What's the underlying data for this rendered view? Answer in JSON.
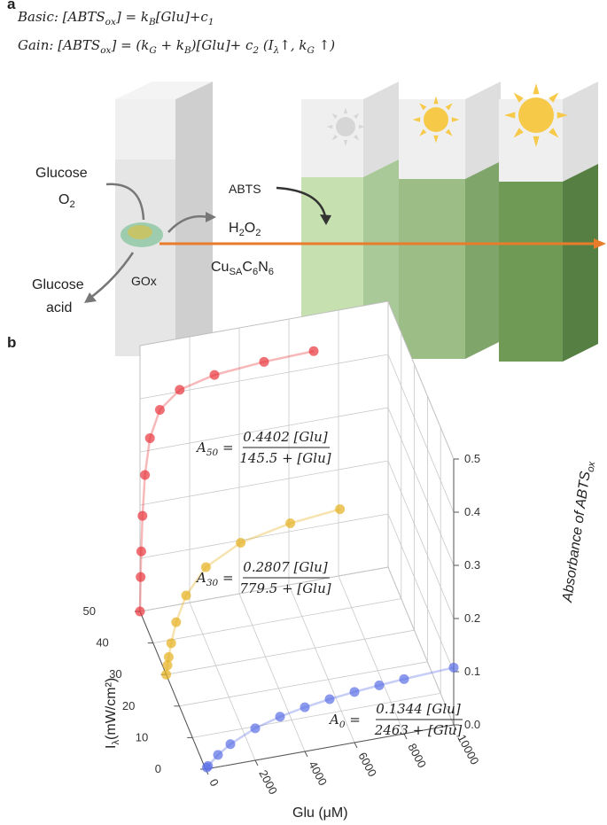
{
  "panel_a": {
    "label": "a",
    "equations": [
      [
        "Basic: [ABTS",
        "ox",
        "] = k",
        "B",
        "[Glu]+c",
        "1"
      ],
      [
        "Gain: [ABTS",
        "ox",
        "] = (k",
        "G",
        " + k",
        "B",
        ")[Glu]+ c",
        "2",
        "     (I",
        "λ",
        "↑, k",
        "G",
        " ↑)"
      ]
    ],
    "glucose_in": "Glucose",
    "o2": [
      "O",
      "2"
    ],
    "acid_1": "Glucose",
    "acid_2": "acid",
    "enzyme": "GOx",
    "abts": "ABTS",
    "h2o2": [
      "H",
      "2",
      "O",
      "2"
    ],
    "catalyst": [
      "Cu",
      "SA",
      "C",
      "6",
      "N",
      "6"
    ]
  },
  "chart_data": {
    "type": "scatter3d",
    "label": "b",
    "xlabel": "Glu (μM)",
    "ylabel": [
      "I",
      "λ",
      "(mW/cm²)"
    ],
    "zlabel": [
      "Absorbance of ABTS",
      "ox"
    ],
    "xlim": [
      0,
      10000
    ],
    "ylim": [
      0,
      50
    ],
    "zlim": [
      0,
      0.5
    ],
    "xticks": [
      0,
      2000,
      4000,
      6000,
      8000,
      10000
    ],
    "yticks": [
      0,
      10,
      20,
      30,
      40,
      50
    ],
    "zticks": [
      {
        "value": 0,
        "label": "0.0"
      },
      0.1,
      0.2,
      0.3,
      0.4,
      0.5
    ],
    "grid": true,
    "series": [
      {
        "depth": 50,
        "color": "#e8353a",
        "x": [
          0,
          25,
          50,
          100,
          200,
          400,
          800,
          1600,
          3000,
          5000,
          7000
        ],
        "values": [
          0,
          0.0645,
          0.1125,
          0.179,
          0.255,
          0.3226,
          0.3725,
          0.4035,
          0.4198,
          0.4278,
          0.4312
        ],
        "fit": {
          "lhs": [
            "A",
            "50",
            " ="
          ],
          "num": "0.4402 [Glu]",
          "den": "145.5 + [Glu]"
        }
      },
      {
        "depth": 30,
        "color": "#e6b01e",
        "x": [
          0,
          50,
          100,
          200,
          400,
          800,
          1600,
          3000,
          5000,
          7000
        ],
        "values": [
          0,
          0.0169,
          0.0319,
          0.0573,
          0.0951,
          0.142,
          0.1887,
          0.2228,
          0.2428,
          0.2526
        ],
        "fit": {
          "lhs": [
            "A",
            "30",
            " ="
          ],
          "num": "0.2807 [Glu]",
          "den": "779.5 + [Glu]"
        }
      },
      {
        "depth": 0,
        "color": "#5b6fe6",
        "x": [
          50,
          100,
          500,
          1000,
          2000,
          3000,
          4000,
          5000,
          6000,
          7000,
          8000,
          10000
        ],
        "values": [
          0.00267,
          0.00524,
          0.0227,
          0.0388,
          0.0602,
          0.0738,
          0.0831,
          0.09,
          0.0953,
          0.0994,
          0.1028,
          0.1078
        ],
        "fit": {
          "lhs": [
            "A",
            "0",
            " ="
          ],
          "num": "0.1344 [Glu]",
          "den": "2463 + [Glu]"
        }
      }
    ]
  }
}
